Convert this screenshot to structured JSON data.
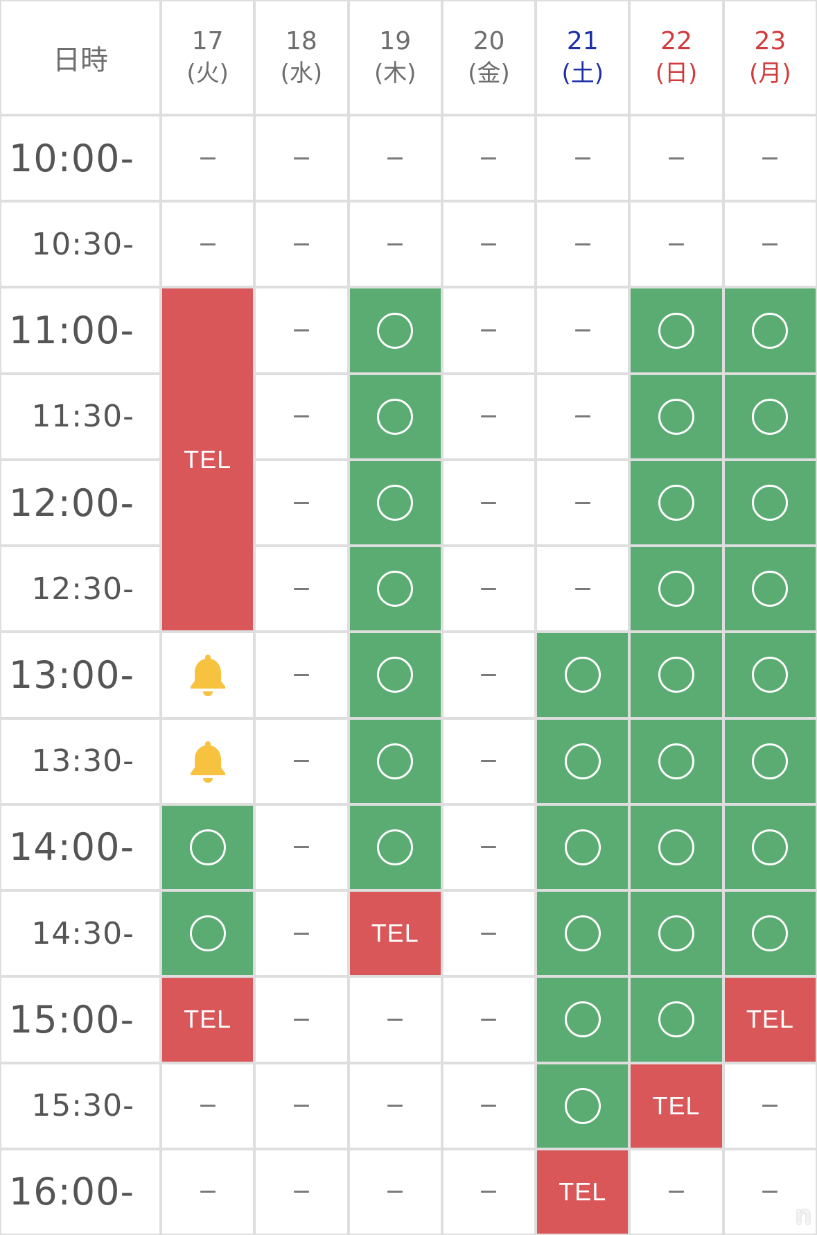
{
  "header": {
    "corner_label": "日時",
    "days": [
      {
        "date": "17",
        "weekday": "(火)",
        "color": "#6e6e6e"
      },
      {
        "date": "18",
        "weekday": "(水)",
        "color": "#6e6e6e"
      },
      {
        "date": "19",
        "weekday": "(木)",
        "color": "#6e6e6e"
      },
      {
        "date": "20",
        "weekday": "(金)",
        "color": "#6e6e6e"
      },
      {
        "date": "21",
        "weekday": "(土)",
        "color": "#1c2fa8"
      },
      {
        "date": "22",
        "weekday": "(日)",
        "color": "#d23b3b"
      },
      {
        "date": "23",
        "weekday": "(月)",
        "color": "#d23b3b"
      }
    ]
  },
  "colors": {
    "available": "#5aac72",
    "tel": "#d95659",
    "bell": "#f6c23f",
    "dash": "#7a7a7a"
  },
  "legend": {
    "available_icon": "circle-icon",
    "unavailable_icon": "dash-icon",
    "notify_icon": "bell-icon",
    "tel_label": "TEL"
  },
  "rows": [
    {
      "time": "10:00-",
      "cells": [
        "dash",
        "dash",
        "dash",
        "dash",
        "dash",
        "dash",
        "dash"
      ]
    },
    {
      "time": "10:30-",
      "cells": [
        "dash",
        "dash",
        "dash",
        "dash",
        "dash",
        "dash",
        "dash"
      ]
    },
    {
      "time": "11:00-",
      "cells": [
        "tel",
        "dash",
        "ok",
        "dash",
        "dash",
        "ok",
        "ok"
      ]
    },
    {
      "time": "11:30-",
      "cells": [
        "tel",
        "dash",
        "ok",
        "dash",
        "dash",
        "ok",
        "ok"
      ]
    },
    {
      "time": "12:00-",
      "cells": [
        "tel",
        "dash",
        "ok",
        "dash",
        "dash",
        "ok",
        "ok"
      ]
    },
    {
      "time": "12:30-",
      "cells": [
        "tel",
        "dash",
        "ok",
        "dash",
        "dash",
        "ok",
        "ok"
      ]
    },
    {
      "time": "13:00-",
      "cells": [
        "bell",
        "dash",
        "ok",
        "dash",
        "ok",
        "ok",
        "ok"
      ]
    },
    {
      "time": "13:30-",
      "cells": [
        "bell",
        "dash",
        "ok",
        "dash",
        "ok",
        "ok",
        "ok"
      ]
    },
    {
      "time": "14:00-",
      "cells": [
        "ok",
        "dash",
        "ok",
        "dash",
        "ok",
        "ok",
        "ok"
      ]
    },
    {
      "time": "14:30-",
      "cells": [
        "ok",
        "dash",
        "tel",
        "dash",
        "ok",
        "ok",
        "ok"
      ]
    },
    {
      "time": "15:00-",
      "cells": [
        "tel",
        "dash",
        "dash",
        "dash",
        "ok",
        "ok",
        "tel"
      ]
    },
    {
      "time": "15:30-",
      "cells": [
        "dash",
        "dash",
        "dash",
        "dash",
        "ok",
        "tel",
        "dash"
      ]
    },
    {
      "time": "16:00-",
      "cells": [
        "dash",
        "dash",
        "dash",
        "dash",
        "tel",
        "dash",
        "dash"
      ]
    }
  ],
  "merged_tel_blocks": [
    {
      "day_index": 0,
      "start_row": 2,
      "span_rows": 4
    }
  ],
  "watermark": "n"
}
